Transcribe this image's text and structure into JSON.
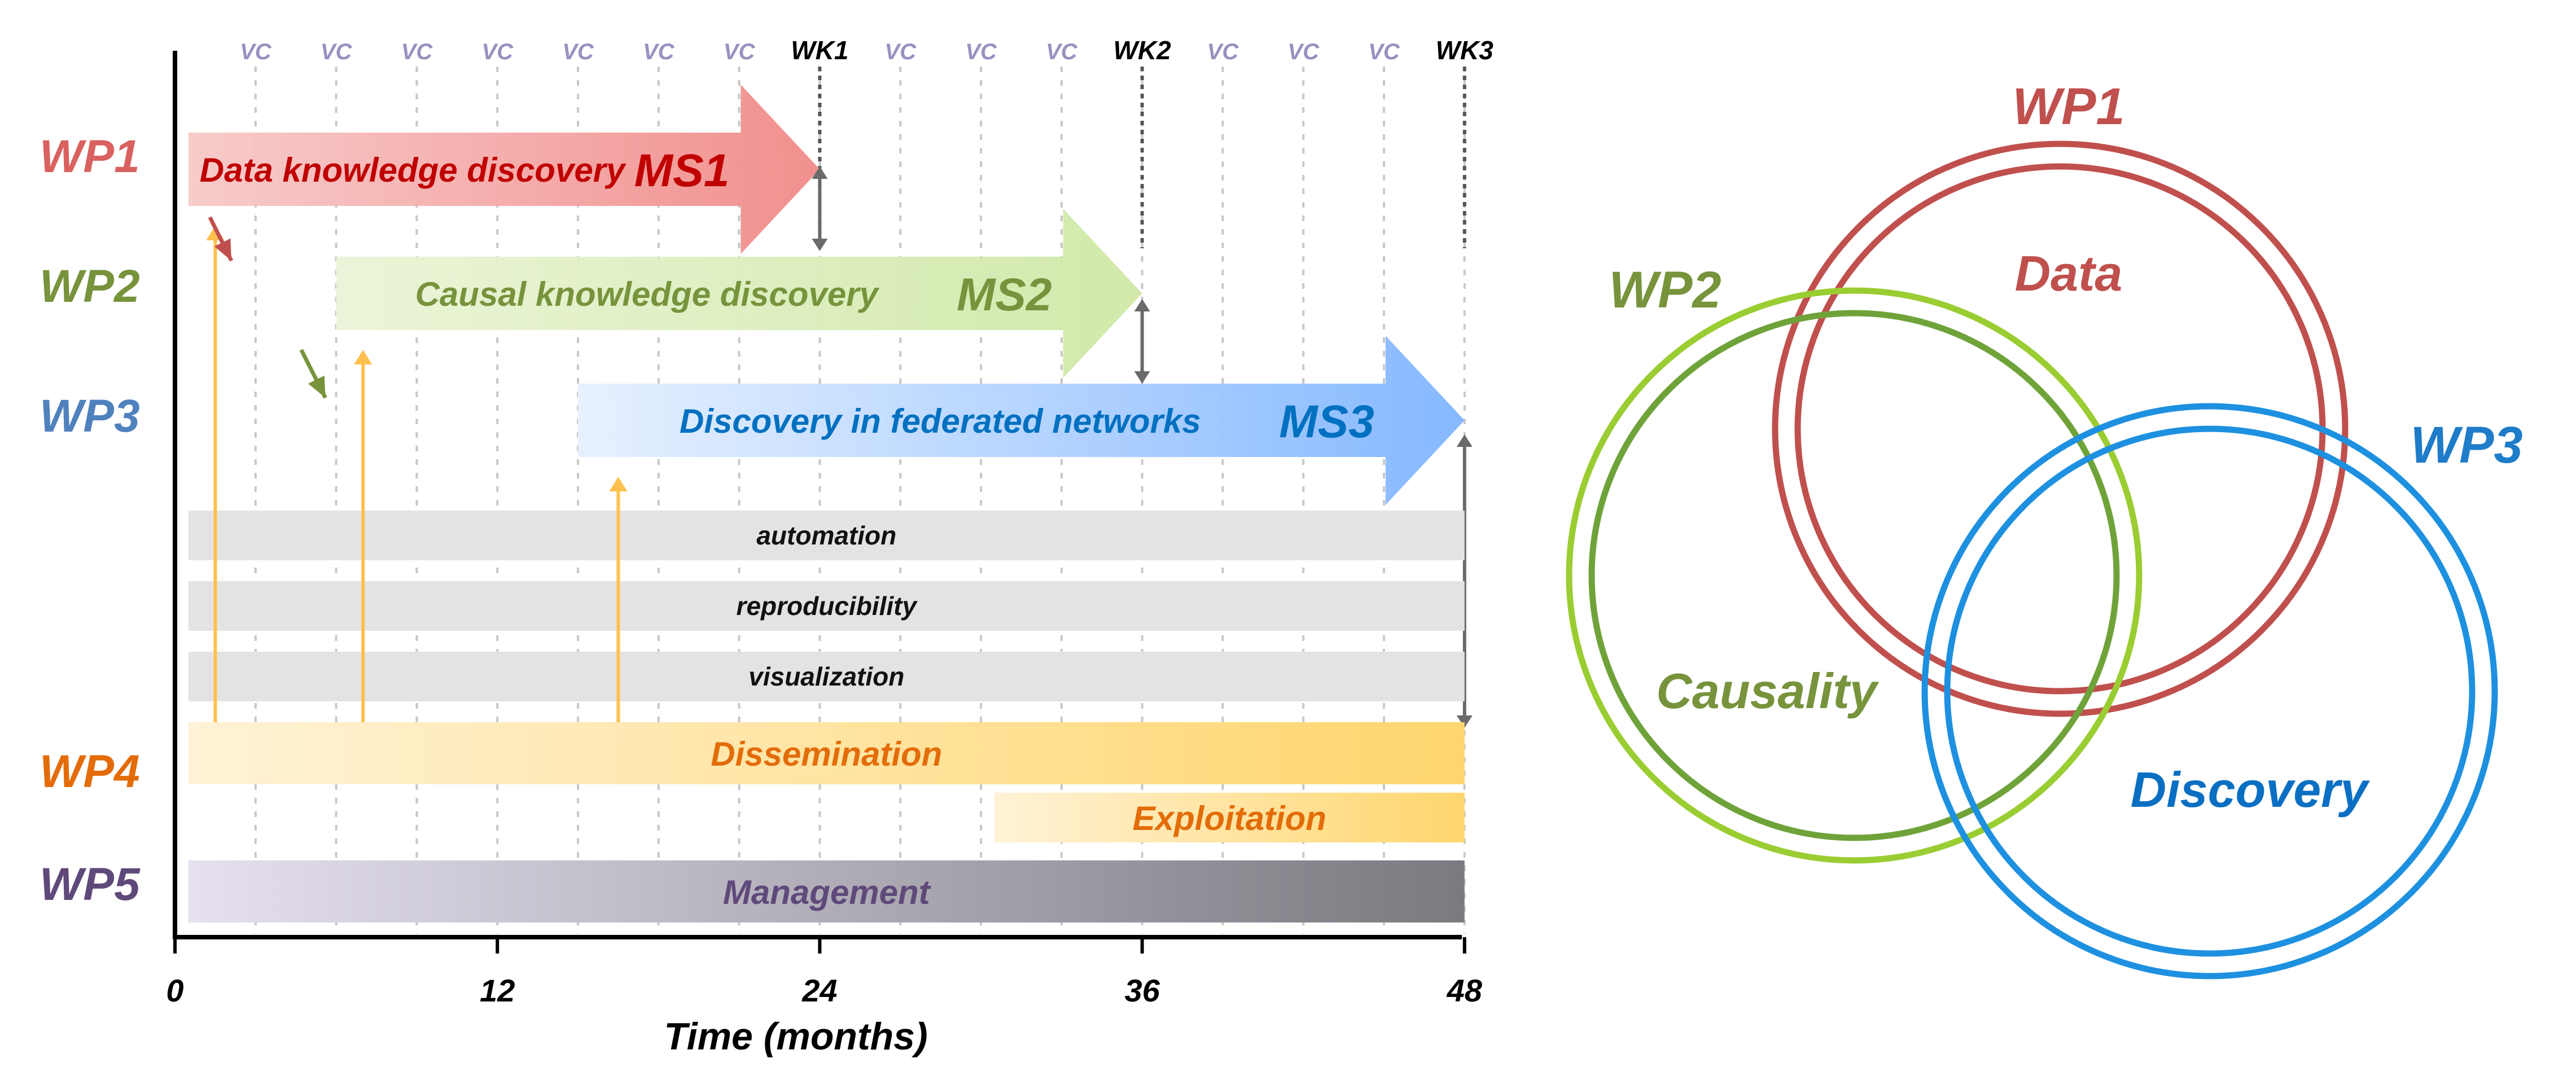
{
  "gantt": {
    "x_axis_label": "Time (months)",
    "x_ticks": [
      "0",
      "12",
      "24",
      "36",
      "48"
    ],
    "top_markers": [
      "VC",
      "VC",
      "VC",
      "VC",
      "VC",
      "VC",
      "VC",
      "WK1",
      "VC",
      "VC",
      "VC",
      "WK2",
      "VC",
      "VC",
      "VC",
      "WK3"
    ],
    "wp_labels": [
      {
        "label": "WP1",
        "color": "#d9615f"
      },
      {
        "label": "WP2",
        "color": "#77933c"
      },
      {
        "label": "WP3",
        "color": "#4f81bd"
      },
      {
        "label": "WP4",
        "color": "#e36c09"
      },
      {
        "label": "WP5",
        "color": "#5f497a"
      }
    ],
    "arrows": [
      {
        "text": "Data knowledge discovery",
        "milestone": "MS1",
        "start_month": 0.5,
        "end_month": 24,
        "color": "#c00000"
      },
      {
        "text": "Causal knowledge discovery",
        "milestone": "MS2",
        "start_month": 6,
        "end_month": 36,
        "color": "#77933c"
      },
      {
        "text": "Discovery in federated networks",
        "milestone": "MS3",
        "start_month": 15,
        "end_month": 48,
        "color": "#0070c0"
      }
    ],
    "support_bars": [
      {
        "text": "automation",
        "start_month": 0.5,
        "end_month": 48
      },
      {
        "text": "reproducibility",
        "start_month": 0.5,
        "end_month": 48
      },
      {
        "text": "visualization",
        "start_month": 0.5,
        "end_month": 48
      }
    ],
    "wp4_bars": [
      {
        "text": "Dissemination",
        "start_month": 0.5,
        "end_month": 48
      },
      {
        "text": "Exploitation",
        "start_month": 30.5,
        "end_month": 48
      }
    ],
    "wp5_bar": {
      "text": "Management",
      "start_month": 0.5,
      "end_month": 48
    }
  },
  "venn": {
    "circles": [
      {
        "wp": "WP1",
        "theme": "Data",
        "color": "#c0504d"
      },
      {
        "wp": "WP2",
        "theme": "Causality",
        "color": "#9acd32"
      },
      {
        "wp": "WP3",
        "theme": "Discovery",
        "color": "#1e90e0"
      }
    ]
  }
}
